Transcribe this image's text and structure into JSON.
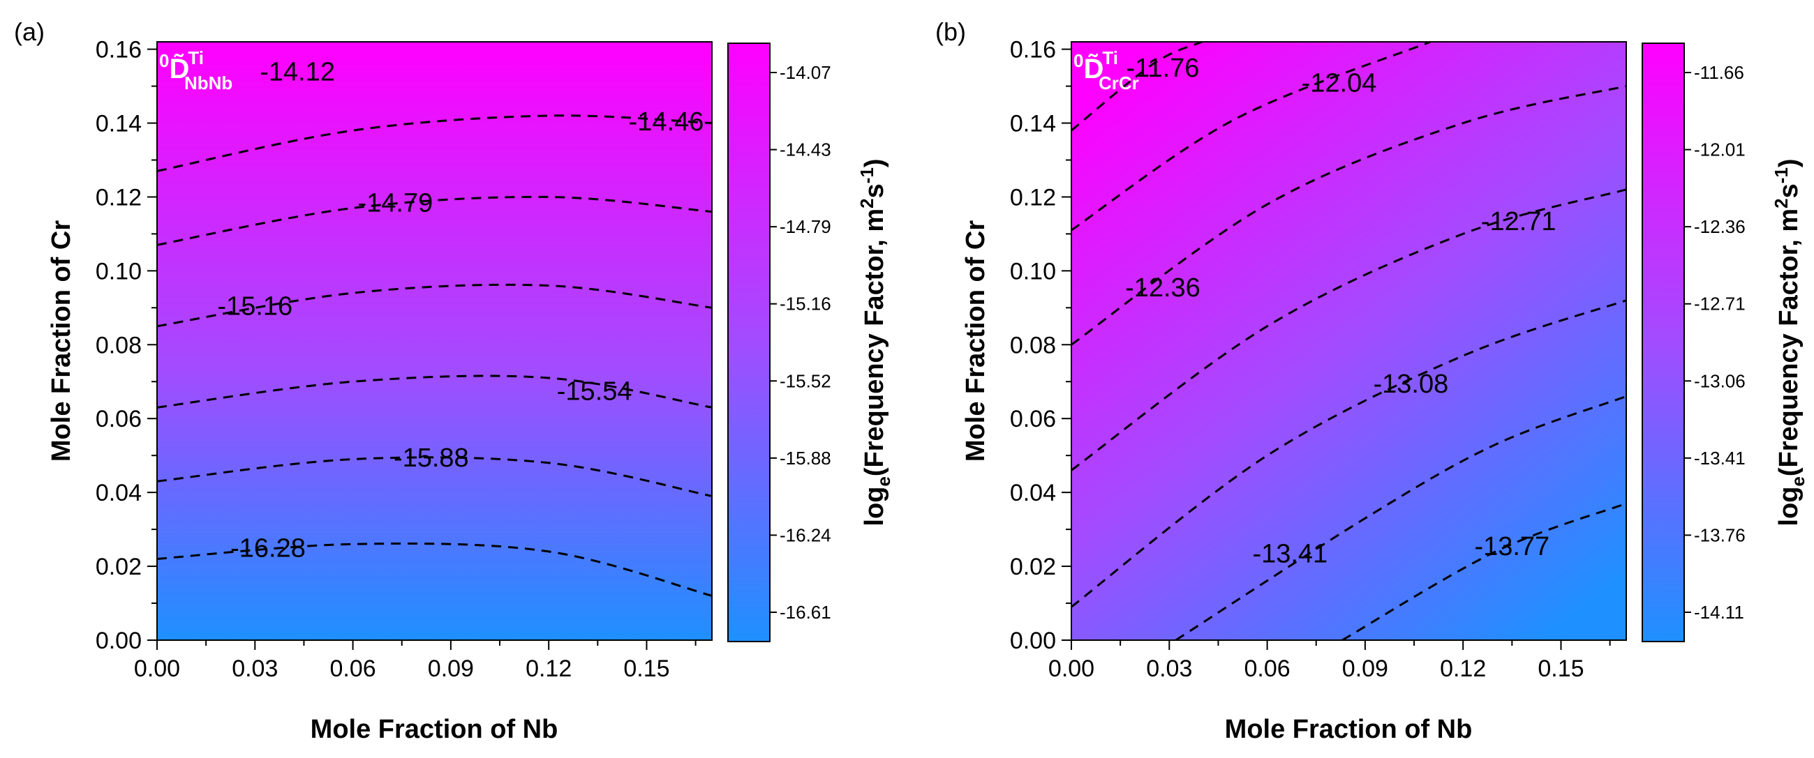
{
  "chart_data": [
    {
      "panel_label": "(a)",
      "type": "contour",
      "overlay_label": {
        "prefix": "0",
        "symbol": "D̃",
        "superscript": "Ti",
        "subscript": "NbNb"
      },
      "xlabel": "Mole Fraction of Nb",
      "ylabel": "Mole Fraction of  Cr",
      "xlim": [
        0,
        0.17
      ],
      "ylim": [
        0,
        0.162
      ],
      "xticks": [
        "0.00",
        "0.03",
        "0.06",
        "0.09",
        "0.12",
        "0.15"
      ],
      "yticks": [
        "0.00",
        "0.02",
        "0.04",
        "0.06",
        "0.08",
        "0.10",
        "0.12",
        "0.14",
        "0.16"
      ],
      "colorbar": {
        "title": {
          "prefix": "log",
          "sub": "e",
          "main": "(Frequency Factor, m",
          "sup1": "2",
          "mid": "s",
          "sup2": "-1",
          "end": ")"
        },
        "ticks": [
          "-14.07",
          "-14.43",
          "-14.79",
          "-15.16",
          "-15.52",
          "-15.88",
          "-16.24",
          "-16.61"
        ],
        "color_high": "#FF00FF",
        "color_low": "#1E90FF"
      },
      "contours": [
        {
          "level": "-14.46",
          "points": [
            [
              0.0,
              0.127
            ],
            [
              0.06,
              0.138
            ],
            [
              0.12,
              0.142
            ],
            [
              0.17,
              0.14
            ]
          ]
        },
        {
          "level": "-14.79",
          "points": [
            [
              0.0,
              0.107
            ],
            [
              0.06,
              0.117
            ],
            [
              0.12,
              0.12
            ],
            [
              0.17,
              0.116
            ]
          ]
        },
        {
          "level": "-15.16",
          "points": [
            [
              0.0,
              0.085
            ],
            [
              0.06,
              0.094
            ],
            [
              0.12,
              0.096
            ],
            [
              0.17,
              0.09
            ]
          ]
        },
        {
          "level": "-15.54",
          "points": [
            [
              0.0,
              0.063
            ],
            [
              0.06,
              0.07
            ],
            [
              0.12,
              0.071
            ],
            [
              0.17,
              0.063
            ]
          ]
        },
        {
          "level": "-15.88",
          "points": [
            [
              0.0,
              0.043
            ],
            [
              0.06,
              0.049
            ],
            [
              0.12,
              0.048
            ],
            [
              0.17,
              0.039
            ]
          ]
        },
        {
          "level": "-16.28",
          "points": [
            [
              0.0,
              0.022
            ],
            [
              0.06,
              0.026
            ],
            [
              0.12,
              0.024
            ],
            [
              0.17,
              0.012
            ]
          ]
        }
      ],
      "contour_labels": [
        {
          "text": "-14.12",
          "x": 0.043,
          "y": 0.154
        },
        {
          "text": "-14.46",
          "x": 0.156,
          "y": 0.1405
        },
        {
          "text": "-14.79",
          "x": 0.073,
          "y": 0.1185
        },
        {
          "text": "-15.16",
          "x": 0.03,
          "y": 0.0905
        },
        {
          "text": "-15.54",
          "x": 0.134,
          "y": 0.0675
        },
        {
          "text": "-15.88",
          "x": 0.084,
          "y": 0.0495
        },
        {
          "text": "-16.28",
          "x": 0.034,
          "y": 0.025
        }
      ]
    },
    {
      "panel_label": "(b)",
      "type": "contour",
      "overlay_label": {
        "prefix": "0",
        "symbol": "D̃",
        "superscript": "Ti",
        "subscript": "CrCr"
      },
      "xlabel": "Mole Fraction of Nb",
      "ylabel": "Mole Fraction of  Cr",
      "xlim": [
        0,
        0.17
      ],
      "ylim": [
        0,
        0.162
      ],
      "xticks": [
        "0.00",
        "0.03",
        "0.06",
        "0.09",
        "0.12",
        "0.15"
      ],
      "yticks": [
        "0.00",
        "0.02",
        "0.04",
        "0.06",
        "0.08",
        "0.10",
        "0.12",
        "0.14",
        "0.16"
      ],
      "colorbar": {
        "title": {
          "prefix": "log",
          "sub": "e",
          "main": "(Frequency Factor, m",
          "sup1": "2",
          "mid": "s",
          "sup2": "-1",
          "end": ")"
        },
        "ticks": [
          "-11.66",
          "-12.01",
          "-12.36",
          "-12.71",
          "-13.06",
          "-13.41",
          "-13.76",
          "-14.11"
        ],
        "color_high": "#FF00FF",
        "color_low": "#1E90FF"
      },
      "contours": [
        {
          "level": "-11.76",
          "points": [
            [
              0.0,
              0.138
            ],
            [
              0.025,
              0.156
            ],
            [
              0.04,
              0.162
            ]
          ]
        },
        {
          "level": "-12.04",
          "points": [
            [
              0.0,
              0.111
            ],
            [
              0.05,
              0.141
            ],
            [
              0.11,
              0.162
            ]
          ]
        },
        {
          "level": "-12.36",
          "points": [
            [
              0.0,
              0.08
            ],
            [
              0.06,
              0.118
            ],
            [
              0.12,
              0.14
            ],
            [
              0.17,
              0.15
            ]
          ]
        },
        {
          "level": "-12.71",
          "points": [
            [
              0.0,
              0.046
            ],
            [
              0.06,
              0.085
            ],
            [
              0.12,
              0.11
            ],
            [
              0.17,
              0.122
            ]
          ]
        },
        {
          "level": "-13.08",
          "points": [
            [
              0.0,
              0.009
            ],
            [
              0.06,
              0.05
            ],
            [
              0.12,
              0.077
            ],
            [
              0.17,
              0.092
            ]
          ]
        },
        {
          "level": "-13.41",
          "points": [
            [
              0.032,
              0.0
            ],
            [
              0.09,
              0.033
            ],
            [
              0.13,
              0.053
            ],
            [
              0.17,
              0.066
            ]
          ]
        },
        {
          "level": "-13.77",
          "points": [
            [
              0.083,
              0.0
            ],
            [
              0.13,
              0.024
            ],
            [
              0.17,
              0.037
            ]
          ]
        }
      ],
      "contour_labels": [
        {
          "text": "-11.76",
          "x": 0.028,
          "y": 0.155
        },
        {
          "text": "-12.04",
          "x": 0.082,
          "y": 0.151
        },
        {
          "text": "-12.71",
          "x": 0.137,
          "y": 0.1135
        },
        {
          "text": "-12.36",
          "x": 0.028,
          "y": 0.0955
        },
        {
          "text": "-13.08",
          "x": 0.104,
          "y": 0.0695
        },
        {
          "text": "-13.41",
          "x": 0.067,
          "y": 0.0235
        },
        {
          "text": "-13.77",
          "x": 0.135,
          "y": 0.0255
        }
      ]
    }
  ]
}
